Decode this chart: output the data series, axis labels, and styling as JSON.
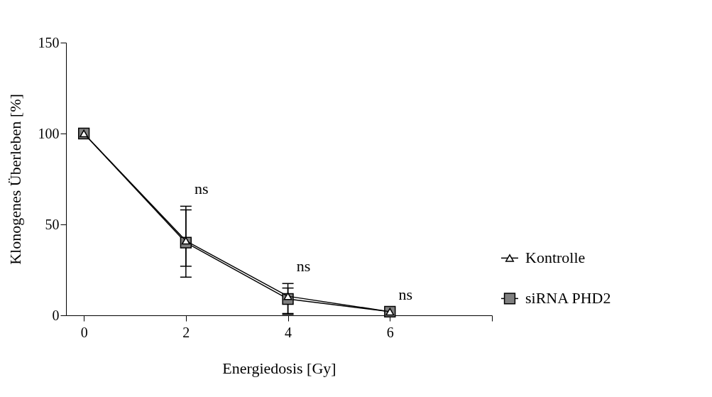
{
  "chart_data": {
    "type": "line",
    "xlabel": "Energiedosis [Gy]",
    "ylabel": "Klonogenes Überleben [%]",
    "x": [
      0,
      2,
      4,
      6
    ],
    "series": [
      {
        "name": "siRNA PHD2",
        "color": "#000000",
        "colors": [
          "#808080",
          "#808080",
          "#808080",
          "#808080"
        ],
        "marker": "square",
        "values": [
          100,
          40,
          9,
          2
        ],
        "errors": [
          null,
          [
            27,
            58
          ],
          [
            1,
            15
          ],
          null
        ]
      },
      {
        "name": "Kontrolle",
        "color": "#000000",
        "colors": [
          "#ffffff",
          "#ffffff",
          "#ffffff",
          "#ffffff"
        ],
        "marker": "triangle",
        "values": [
          100,
          41,
          10.5,
          2
        ],
        "errors": [
          null,
          [
            21,
            60
          ],
          [
            0.5,
            17.5
          ],
          null
        ]
      }
    ],
    "xlim": [
      -0.35,
      8
    ],
    "xticks": [
      0,
      2,
      4,
      6,
      {
        "value": 8,
        "label": null
      }
    ],
    "ylim": [
      0,
      150
    ],
    "yticks": [
      0,
      50,
      100,
      150
    ],
    "annotations": [
      {
        "text": "ns",
        "x": 2,
        "y": 60
      },
      {
        "text": "ns",
        "x": 4,
        "y": 17.5
      },
      {
        "text": "ns",
        "x": 6,
        "y": 2
      }
    ],
    "grid": false,
    "legend": "right",
    "line_style": "solid"
  }
}
